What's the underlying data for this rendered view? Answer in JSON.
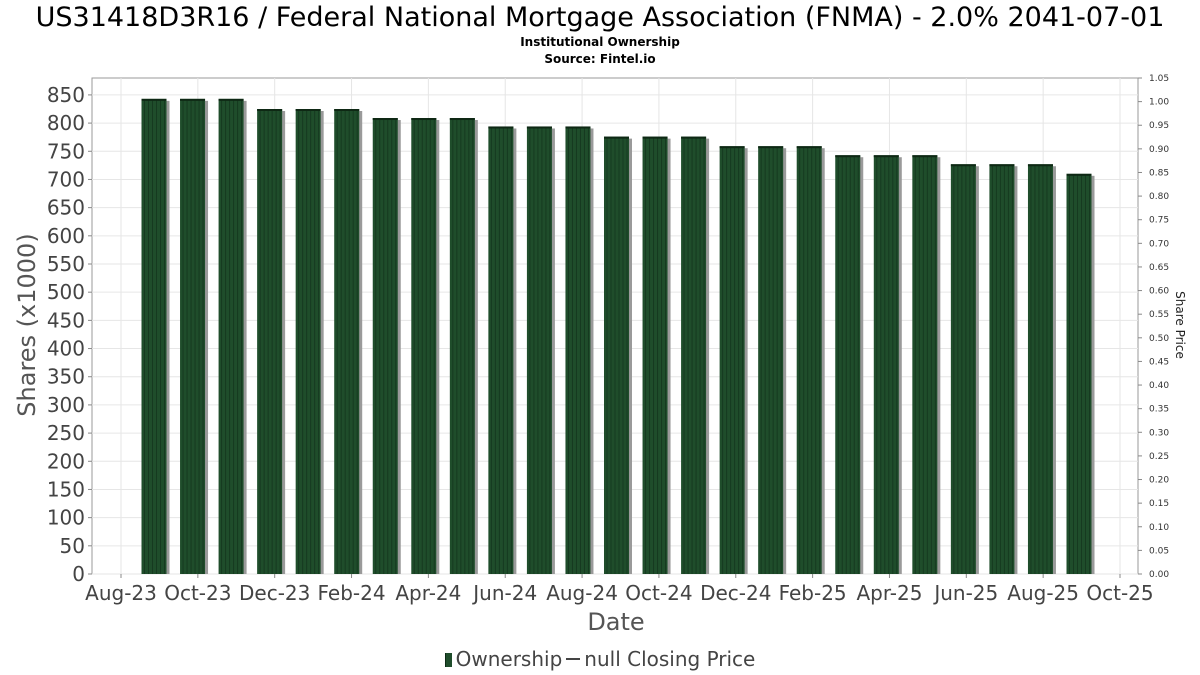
{
  "chart_data": {
    "type": "bar",
    "title": "US31418D3R16 / Federal National Mortgage Association (FNMA) - 2.0% 2041-07-01",
    "subtitle": "Institutional Ownership",
    "source": "Source: Fintel.io",
    "xlabel": "Date",
    "ylabel": "Shares (x1000)",
    "ylabel_right": "Share Price",
    "ylim": [
      0,
      880
    ],
    "ylim_right": [
      0,
      1.05
    ],
    "y_ticks": [
      "0",
      "50",
      "100",
      "150",
      "200",
      "250",
      "300",
      "350",
      "400",
      "450",
      "500",
      "550",
      "600",
      "650",
      "700",
      "750",
      "800",
      "850"
    ],
    "y_ticks_right": [
      "0.00",
      "0.05",
      "0.10",
      "0.15",
      "0.20",
      "0.25",
      "0.30",
      "0.35",
      "0.40",
      "0.45",
      "0.50",
      "0.55",
      "0.60",
      "0.65",
      "0.70",
      "0.75",
      "0.80",
      "0.85",
      "0.90",
      "0.95",
      "1.00",
      "1.05"
    ],
    "x_ticks": [
      "Aug-23",
      "Oct-23",
      "Dec-23",
      "Feb-24",
      "Apr-24",
      "Jun-24",
      "Aug-24",
      "Oct-24",
      "Dec-24",
      "Feb-25",
      "Apr-25",
      "Jun-25",
      "Aug-25",
      "Oct-25"
    ],
    "grid": true,
    "legend_position": "bottom",
    "series": [
      {
        "name": "Ownership",
        "color": "#1f4d2b",
        "values": [
          843,
          843,
          843,
          825,
          825,
          825,
          809,
          809,
          809,
          794,
          794,
          794,
          776,
          776,
          776,
          759,
          759,
          759,
          743,
          743,
          743,
          727,
          727,
          727,
          710
        ]
      }
    ],
    "legend": {
      "ownership_label": "Ownership",
      "price_label": "null Closing Price"
    }
  }
}
